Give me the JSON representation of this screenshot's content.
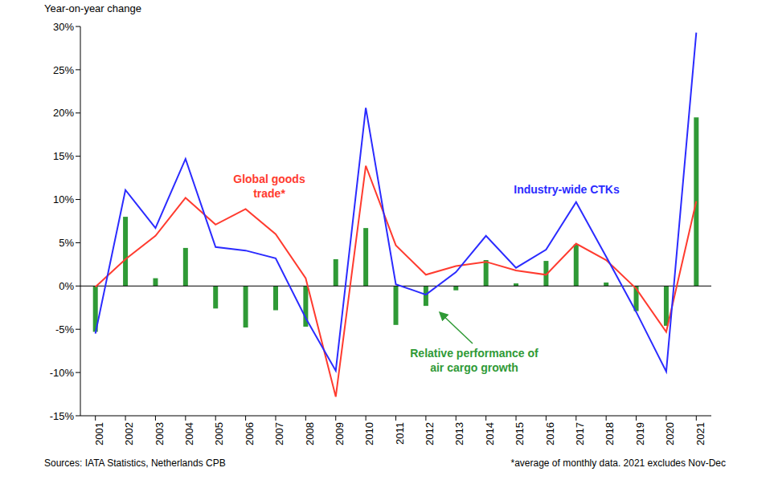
{
  "chart_data": {
    "type": "bar",
    "y_label": "Year-on-year change",
    "sources": "Sources: IATA Statistics, Netherlands CPB",
    "footnote": "*average of monthly data. 2021 excludes Nov-Dec",
    "categories": [
      "2001",
      "2002",
      "2003",
      "2004",
      "2005",
      "2006",
      "2007",
      "2008",
      "2009",
      "2010",
      "2011",
      "2012",
      "2013",
      "2014",
      "2015",
      "2016",
      "2017",
      "2018",
      "2019",
      "2020",
      "2021"
    ],
    "ylim": [
      -15,
      30
    ],
    "yticks": [
      {
        "value": -15,
        "label": "-15%"
      },
      {
        "value": -10,
        "label": "-10%"
      },
      {
        "value": -5,
        "label": "-5%"
      },
      {
        "value": 0,
        "label": "0%"
      },
      {
        "value": 5,
        "label": "5%"
      },
      {
        "value": 10,
        "label": "10%"
      },
      {
        "value": 15,
        "label": "15%"
      },
      {
        "value": 20,
        "label": "20%"
      },
      {
        "value": 25,
        "label": "25%"
      },
      {
        "value": 30,
        "label": "30%"
      }
    ],
    "grid": false,
    "series": [
      {
        "name": "Relative performance of air cargo growth",
        "type": "bar",
        "color": "#2f9a36",
        "values": [
          -5.3,
          8.0,
          0.9,
          4.4,
          -2.6,
          -4.8,
          -2.8,
          -4.7,
          3.1,
          6.7,
          -4.5,
          -2.3,
          -0.5,
          3.0,
          0.3,
          2.9,
          4.8,
          0.4,
          -2.9,
          -4.6,
          19.5
        ]
      },
      {
        "name": "Global goods trade*",
        "type": "line",
        "color": "#ff3b2f",
        "values": [
          -0.1,
          3.1,
          5.8,
          10.2,
          7.1,
          8.9,
          6.0,
          0.9,
          -12.8,
          13.9,
          4.7,
          1.3,
          2.3,
          2.8,
          1.8,
          1.3,
          4.9,
          3.0,
          -0.3,
          -5.3,
          9.8
        ]
      },
      {
        "name": "Industry-wide CTKs",
        "type": "line",
        "color": "#2b2bff",
        "values": [
          -5.5,
          11.1,
          6.7,
          14.7,
          4.5,
          4.1,
          3.2,
          -3.7,
          -9.8,
          20.6,
          0.2,
          -1.0,
          1.6,
          5.8,
          2.1,
          4.2,
          9.7,
          3.4,
          -3.0,
          -9.9,
          29.3
        ]
      }
    ]
  }
}
